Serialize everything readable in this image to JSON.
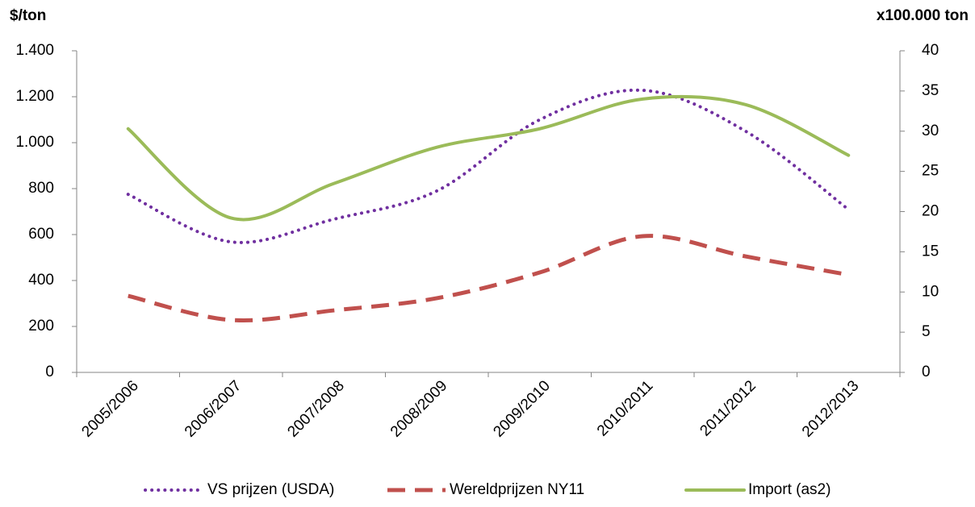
{
  "chart_data": {
    "type": "line",
    "y_label": "$/ton",
    "y2_label": "x100.000 ton",
    "categories": [
      "2005/2006",
      "2006/2007",
      "2007/2008",
      "2008/2009",
      "2009/2010",
      "2010/2011",
      "2011/2012",
      "2012/2013"
    ],
    "series": [
      {
        "name": "VS prijzen (USDA)",
        "color": "#7030a0",
        "style": "dotted",
        "values": [
          775,
          568,
          667,
          790,
          1100,
          1228,
          1050,
          709
        ]
      },
      {
        "name": "Wereldprijzen NY11",
        "color": "#c0504d",
        "style": "dashed",
        "values": [
          333,
          228,
          270,
          323,
          435,
          593,
          505,
          425
        ]
      },
      {
        "name": "Import (as2)",
        "color": "#9bbb59",
        "style": "solid",
        "axis": "y2",
        "values": [
          30.3,
          19.2,
          23.5,
          28,
          30.3,
          34,
          33.3,
          27
        ]
      }
    ],
    "ylim": [
      0,
      1400
    ],
    "yticks": [
      0,
      200,
      400,
      600,
      800,
      {
        "value": 1000,
        "label": "1.000"
      },
      {
        "value": 1200,
        "label": "1.200"
      },
      {
        "value": 1400,
        "label": "1.400"
      }
    ],
    "y2lim": [
      0,
      40
    ],
    "y2ticks": [
      0,
      5,
      10,
      15,
      20,
      25,
      30,
      35,
      40
    ],
    "smooth": true,
    "legend": "bottom"
  }
}
